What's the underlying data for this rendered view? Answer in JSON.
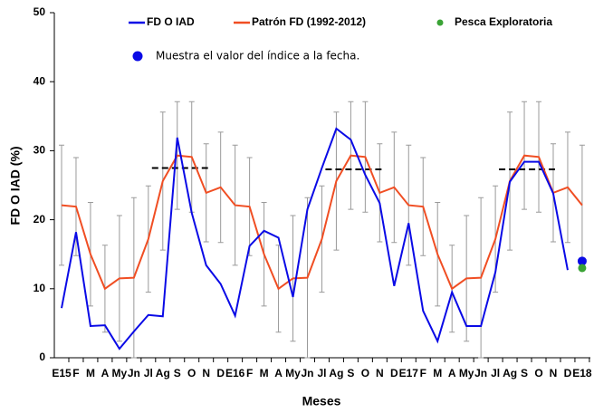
{
  "chart_data": {
    "type": "line",
    "y_label": "FD O IAD (%)",
    "x_label": "Meses",
    "categories": [
      "E15",
      "F",
      "M",
      "A",
      "My",
      "Jn",
      "Jl",
      "Ag",
      "S",
      "O",
      "N",
      "D",
      "E16",
      "F",
      "M",
      "A",
      "My",
      "Jn",
      "Jl",
      "Ag",
      "S",
      "O",
      "N",
      "D",
      "E17",
      "F",
      "M",
      "A",
      "My",
      "Jn",
      "Jl",
      "Ag",
      "S",
      "O",
      "N",
      "D",
      "E18"
    ],
    "ylim": [
      0,
      50
    ],
    "yticks": [
      0,
      10,
      20,
      30,
      40,
      50
    ],
    "series": [
      {
        "name": "FD O IAD",
        "color": "#0a0ae6",
        "style": "line",
        "values": [
          7.2,
          18.2,
          4.6,
          4.7,
          1.3,
          3.8,
          6.2,
          6.0,
          31.9,
          21,
          13.4,
          10.7,
          6.1,
          16.2,
          18.4,
          17.4,
          8.8,
          21.5,
          27.5,
          33.2,
          31.6,
          26.5,
          22.4,
          10.4,
          19.5,
          6.8,
          2.4,
          9.5,
          4.6,
          4.6,
          12.4,
          25.5,
          28.4,
          28.4,
          23.8,
          12.7,
          null
        ]
      },
      {
        "name": "Patrón FD (1992-2012)",
        "color": "#f04e23",
        "style": "line",
        "values": [
          22.1,
          21.9,
          15,
          10,
          11.5,
          11.6,
          17.2,
          25.6,
          29.3,
          29.1,
          23.9,
          24.7,
          22.1,
          21.9,
          15,
          10,
          11.5,
          11.6,
          17.2,
          25.6,
          29.3,
          29.1,
          23.9,
          24.7,
          22.1,
          21.9,
          15,
          10,
          11.5,
          11.6,
          17.2,
          25.6,
          29.3,
          29.1,
          23.9,
          24.7,
          22.1
        ],
        "errors": [
          8.7,
          7.1,
          7.5,
          6.3,
          9.1,
          11.6,
          7.7,
          10,
          7.8,
          8,
          7.1,
          8,
          8.7,
          7.1,
          7.5,
          6.3,
          9.1,
          11.6,
          7.7,
          10,
          7.8,
          8,
          7.1,
          8,
          8.7,
          7.1,
          7.5,
          6.3,
          9.1,
          11.6,
          7.7,
          10,
          7.8,
          8,
          7.1,
          8,
          8.7
        ]
      },
      {
        "name": "Pesca Exploratoria",
        "color": "#3aa335",
        "style": "point",
        "values": [
          null,
          null,
          null,
          null,
          null,
          null,
          null,
          null,
          null,
          null,
          null,
          null,
          null,
          null,
          null,
          null,
          null,
          null,
          null,
          null,
          null,
          null,
          null,
          null,
          null,
          null,
          null,
          null,
          null,
          null,
          null,
          null,
          null,
          null,
          null,
          null,
          13
        ]
      },
      {
        "name": "Muestra el valor del índice a la fecha.",
        "color": "#0a0ae6",
        "style": "point",
        "values": [
          null,
          null,
          null,
          null,
          null,
          null,
          null,
          null,
          null,
          null,
          null,
          null,
          null,
          null,
          null,
          null,
          null,
          null,
          null,
          null,
          null,
          null,
          null,
          null,
          null,
          null,
          null,
          null,
          null,
          null,
          null,
          null,
          null,
          null,
          null,
          null,
          14
        ]
      },
      {
        "color": "#000000",
        "style": "dashed",
        "values": [
          null,
          null,
          null,
          null,
          null,
          null,
          null,
          27.5,
          27.5,
          27.5,
          27.5,
          null,
          null,
          null,
          null,
          null,
          null,
          null,
          null,
          27.3,
          27.3,
          27.3,
          27.3,
          null,
          null,
          null,
          null,
          null,
          null,
          null,
          null,
          27.3,
          27.3,
          27.3,
          27.3,
          null,
          null
        ]
      }
    ]
  }
}
